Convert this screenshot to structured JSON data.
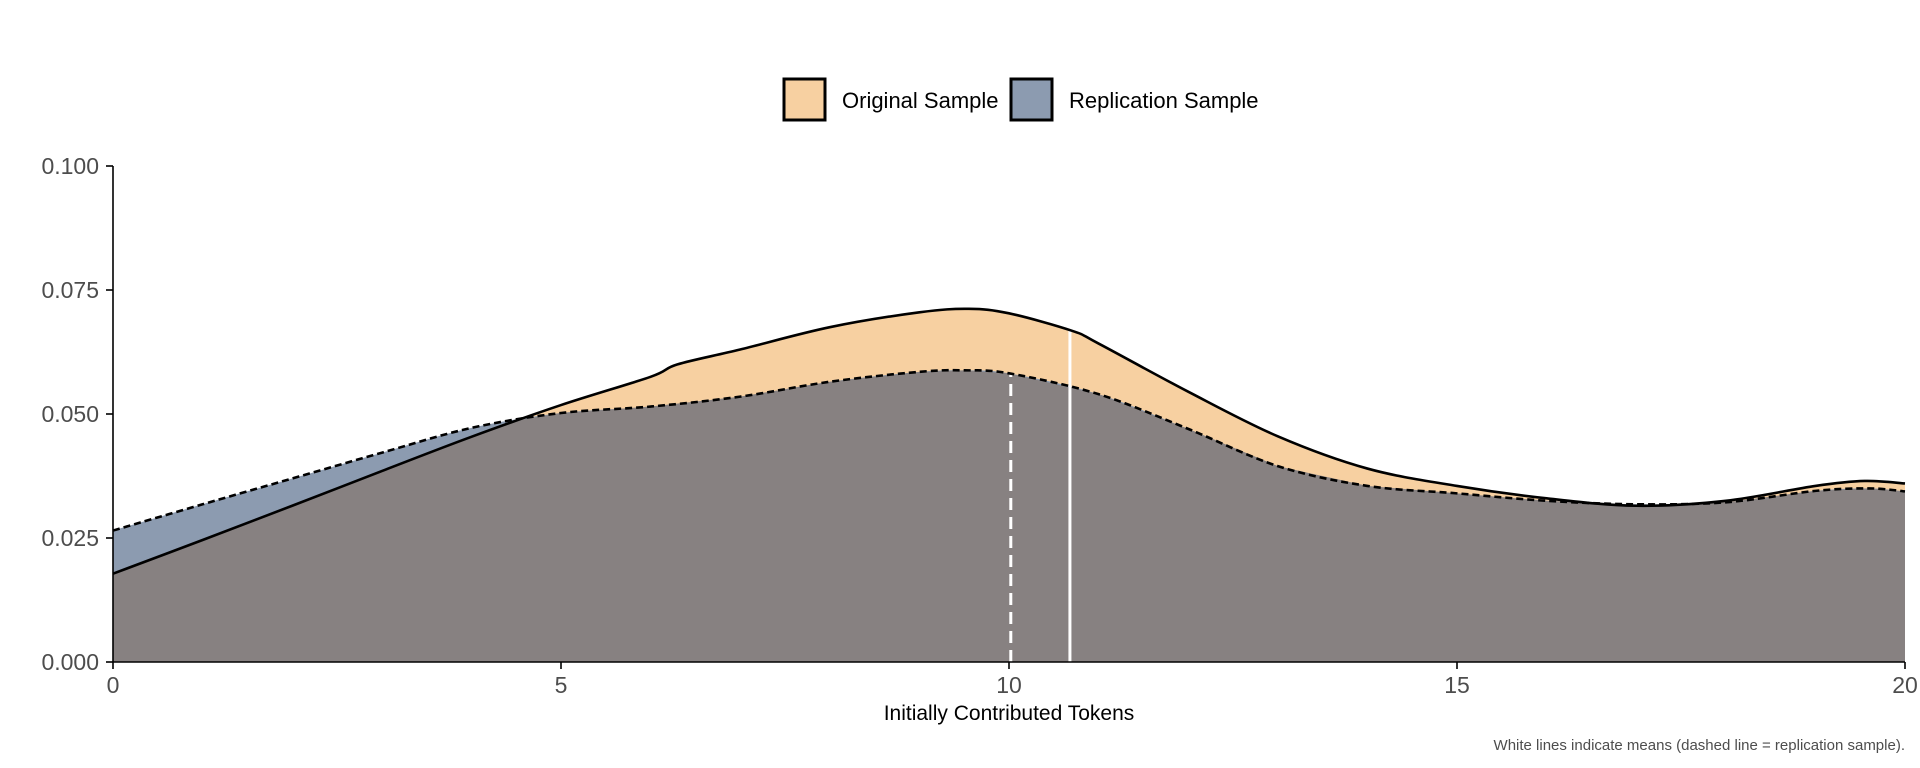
{
  "chart_data": {
    "type": "area",
    "xlabel": "Initially Contributed Tokens",
    "ylabel": "",
    "xlim": [
      0,
      20
    ],
    "ylim": [
      0,
      0.1
    ],
    "x_ticks": [
      "0",
      "5",
      "10",
      "15",
      "20"
    ],
    "y_ticks": [
      "0.000",
      "0.025",
      "0.050",
      "0.075",
      "0.100"
    ],
    "grid": false,
    "legend_position": "top",
    "caption": "White lines indicate means (dashed line = replication sample).",
    "series": [
      {
        "name": "Original Sample",
        "fill_color": "#f7d0a1",
        "line_style": "solid",
        "mean": 10.68,
        "x": [
          0,
          1,
          2,
          3,
          4,
          5,
          6,
          6.3,
          7,
          8,
          9,
          9.55,
          10,
          10.7,
          11,
          12,
          13,
          14,
          15,
          16,
          17,
          18,
          19,
          19.55,
          20
        ],
        "y": [
          0.0178,
          0.0246,
          0.0315,
          0.0385,
          0.0454,
          0.0518,
          0.0575,
          0.06,
          0.063,
          0.0675,
          0.0705,
          0.0712,
          0.0703,
          0.0668,
          0.0642,
          0.0545,
          0.0455,
          0.039,
          0.0355,
          0.033,
          0.0315,
          0.0325,
          0.0355,
          0.0365,
          0.036
        ]
      },
      {
        "name": "Replication Sample",
        "fill_color": "#8c9bb0",
        "line_style": "dashed",
        "mean": 10.02,
        "x": [
          0,
          1,
          2,
          3,
          4,
          5,
          6,
          7,
          8,
          9,
          9.5,
          10,
          11,
          12,
          13,
          14,
          15,
          16,
          17,
          18,
          19,
          19.6,
          20
        ],
        "y": [
          0.0265,
          0.0318,
          0.037,
          0.0422,
          0.0472,
          0.0502,
          0.0515,
          0.0535,
          0.0565,
          0.0585,
          0.0588,
          0.0582,
          0.054,
          0.047,
          0.0395,
          0.0355,
          0.034,
          0.0325,
          0.0318,
          0.0322,
          0.0345,
          0.035,
          0.0344
        ]
      }
    ],
    "overlap_color": "#878181"
  }
}
